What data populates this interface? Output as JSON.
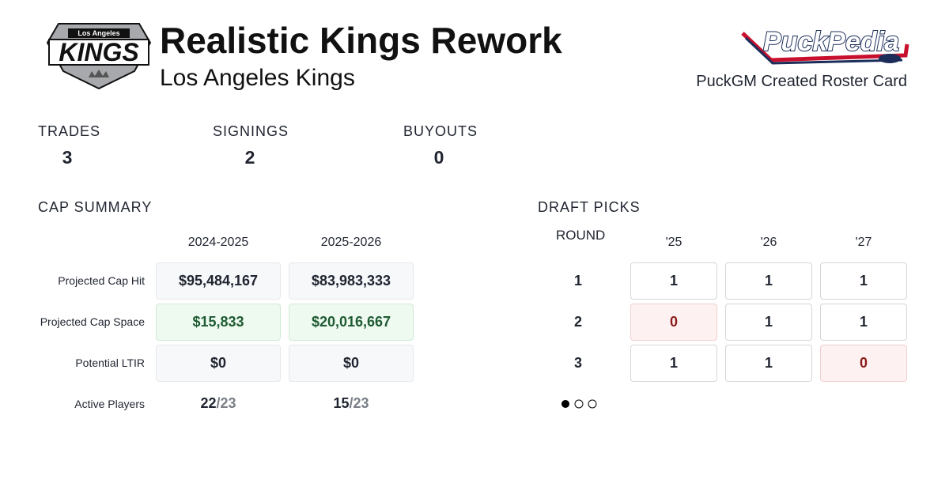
{
  "header": {
    "title": "Realistic Kings Rework",
    "subtitle": "Los Angeles Kings",
    "logo": {
      "top": "Los Angeles",
      "main": "KINGS"
    },
    "brand": "PuckPedia",
    "card_label": "PuckGM Created Roster Card"
  },
  "stats": [
    {
      "label": "TRADES",
      "value": 3
    },
    {
      "label": "SIGNINGS",
      "value": 2
    },
    {
      "label": "BUYOUTS",
      "value": 0
    }
  ],
  "cap_summary": {
    "title": "CAP SUMMARY",
    "columns": [
      "2024-2025",
      "2025-2026"
    ],
    "rows": [
      {
        "label": "Projected Cap Hit",
        "values": [
          "$95,484,167",
          "$83,983,333"
        ],
        "color": "#1f2430",
        "background": "#f7f8fa",
        "border": "#e6e8ec"
      },
      {
        "label": "Projected Cap Space",
        "values": [
          "$15,833",
          "$20,016,667"
        ],
        "color": "#1e5a32",
        "background": "#eefaf0",
        "border": "#cfead5"
      },
      {
        "label": "Potential LTIR",
        "values": [
          "$0",
          "$0"
        ],
        "color": "#1f2430",
        "background": "#f7f8fa",
        "border": "#e6e8ec"
      }
    ],
    "active_players": {
      "label": "Active Players",
      "values": [
        {
          "count": "22",
          "of": "/23"
        },
        {
          "count": "15",
          "of": "/23"
        }
      ]
    }
  },
  "draft_picks": {
    "title": "DRAFT PICKS",
    "round_label": "ROUND",
    "years": [
      "'25",
      "'26",
      "'27"
    ],
    "rounds": [
      {
        "round": 1,
        "picks": [
          1,
          1,
          1
        ]
      },
      {
        "round": 2,
        "picks": [
          0,
          1,
          1
        ]
      },
      {
        "round": 3,
        "picks": [
          1,
          1,
          0
        ]
      }
    ]
  }
}
